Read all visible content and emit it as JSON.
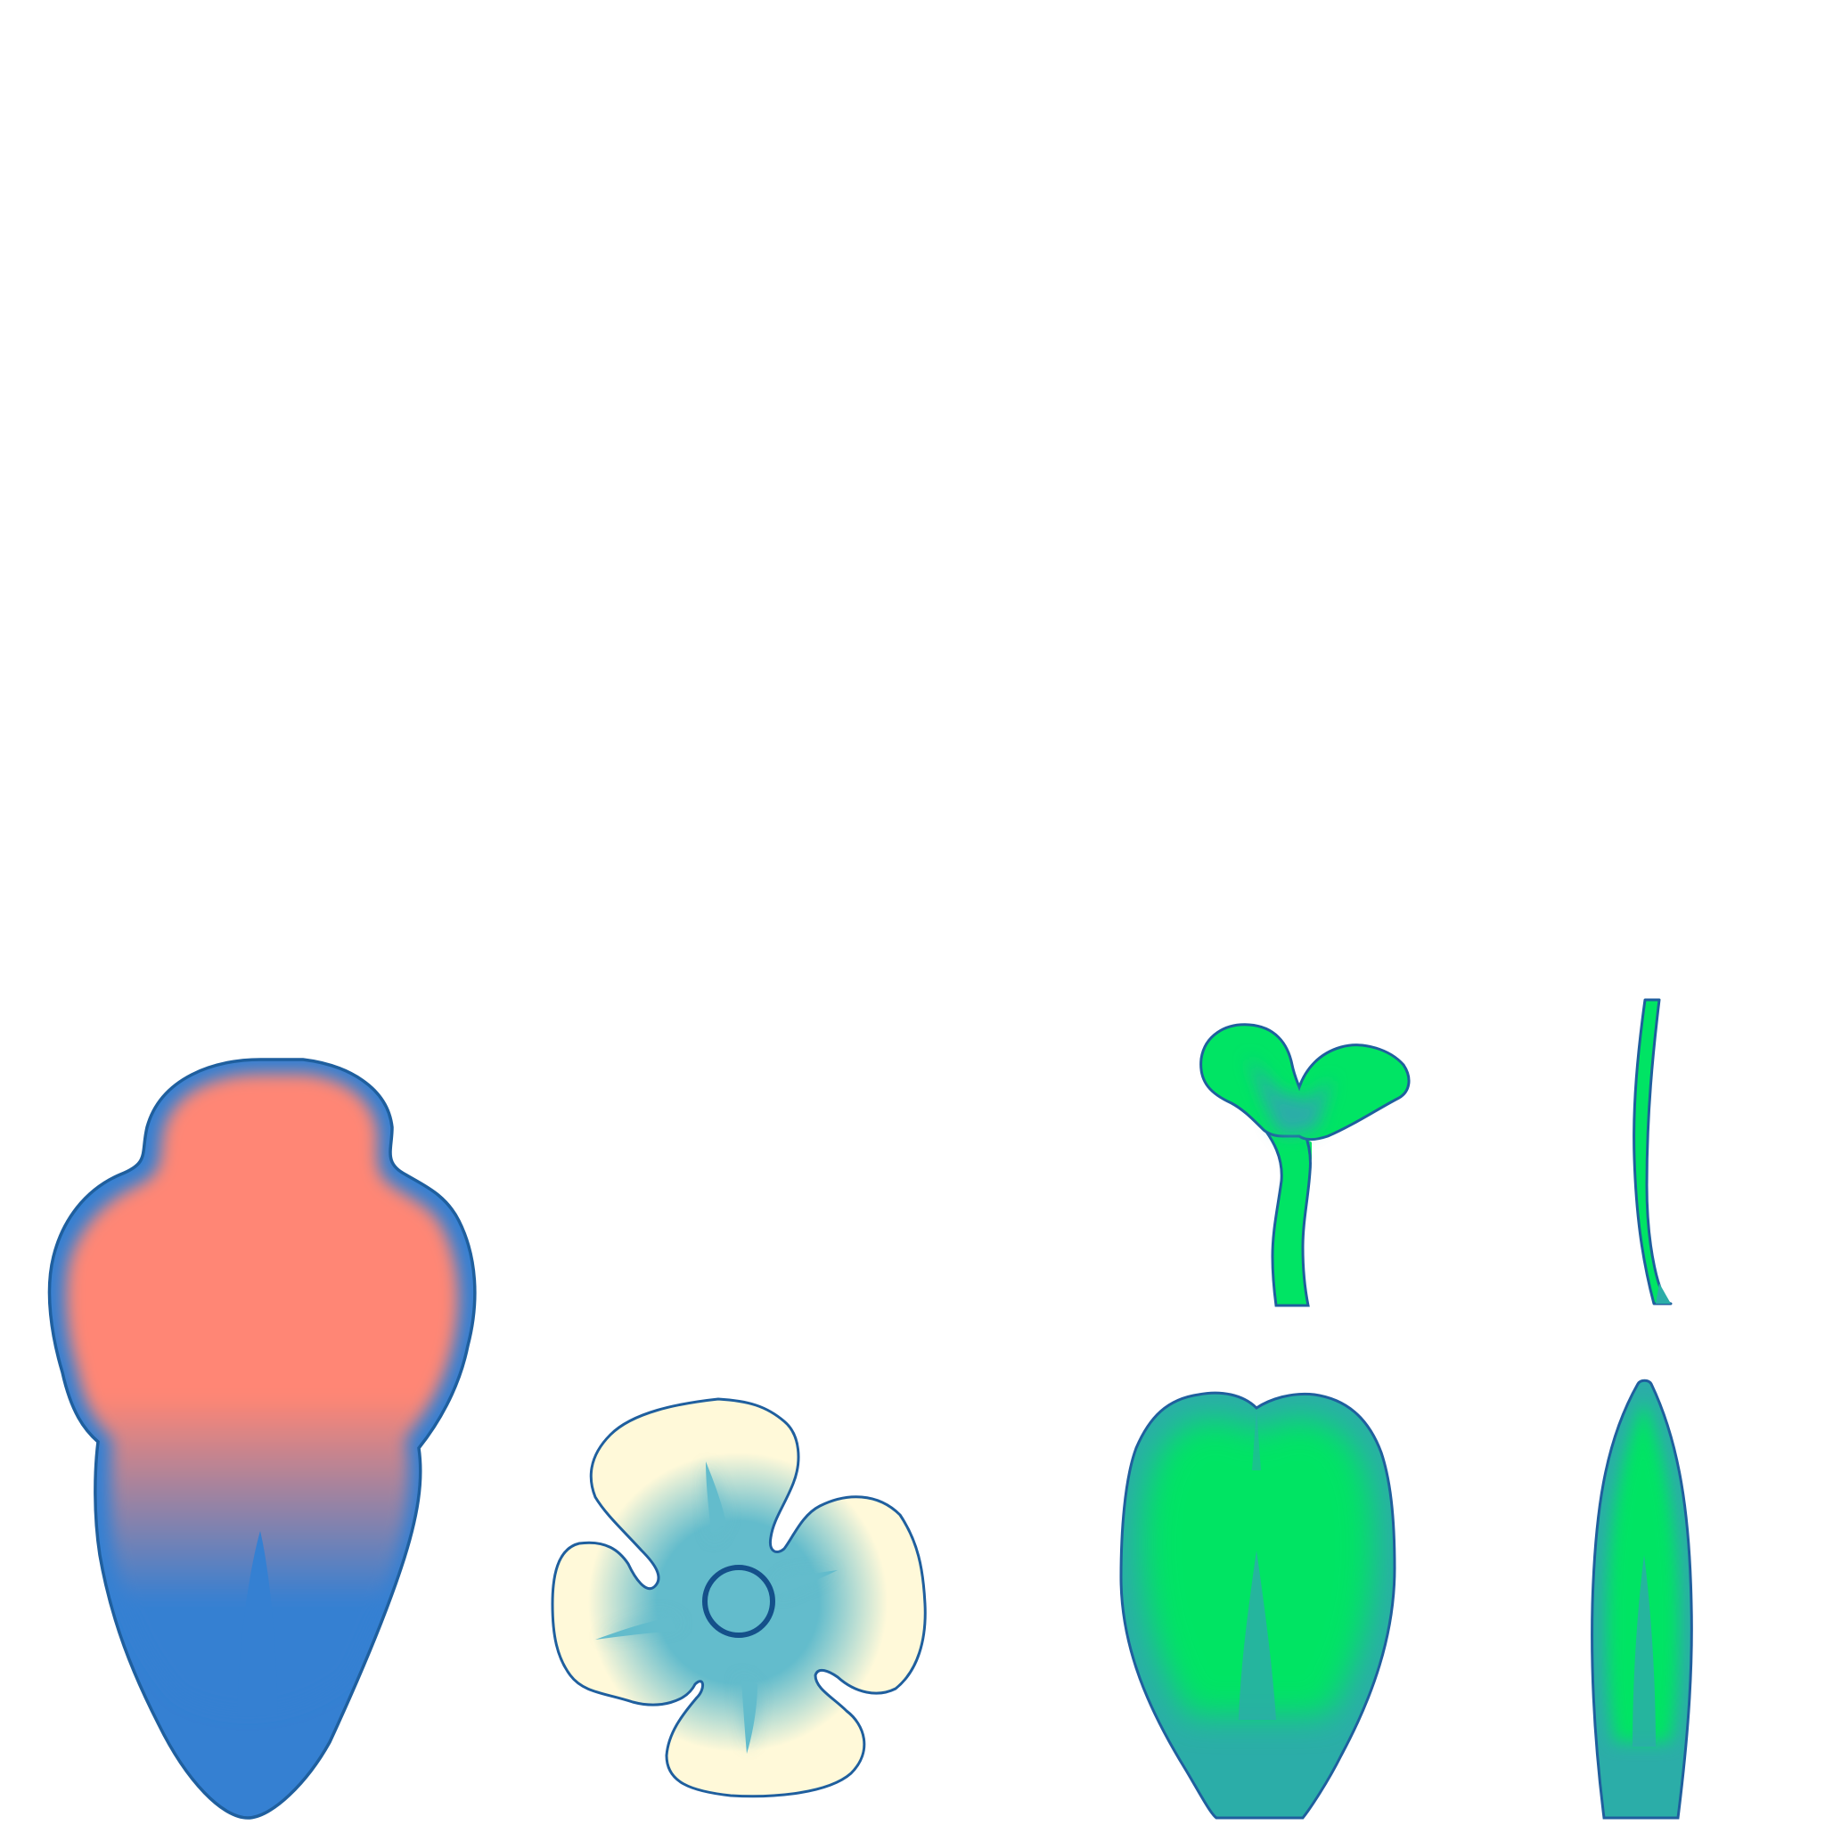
{
  "canvas": {
    "background": "#ffffff"
  },
  "palette": {
    "outline": "#1f5f9e",
    "salmon": "#ff8674",
    "blue": "#3580d2",
    "cream": "#fff9d9",
    "teal_light": "#63bccc",
    "navy": "#14508a",
    "green": "#00e464",
    "teal": "#2bada8"
  },
  "shapes": [
    {
      "id": "salmon-petal",
      "kind": "lobed petal"
    },
    {
      "id": "cream-flower",
      "kind": "four-petal flower"
    },
    {
      "id": "sprout",
      "kind": "seedling"
    },
    {
      "id": "grass-blade",
      "kind": "thin blade"
    },
    {
      "id": "heart-leaf",
      "kind": "bilobed leaf"
    },
    {
      "id": "narrow-leaf",
      "kind": "lanceolate leaf"
    }
  ]
}
